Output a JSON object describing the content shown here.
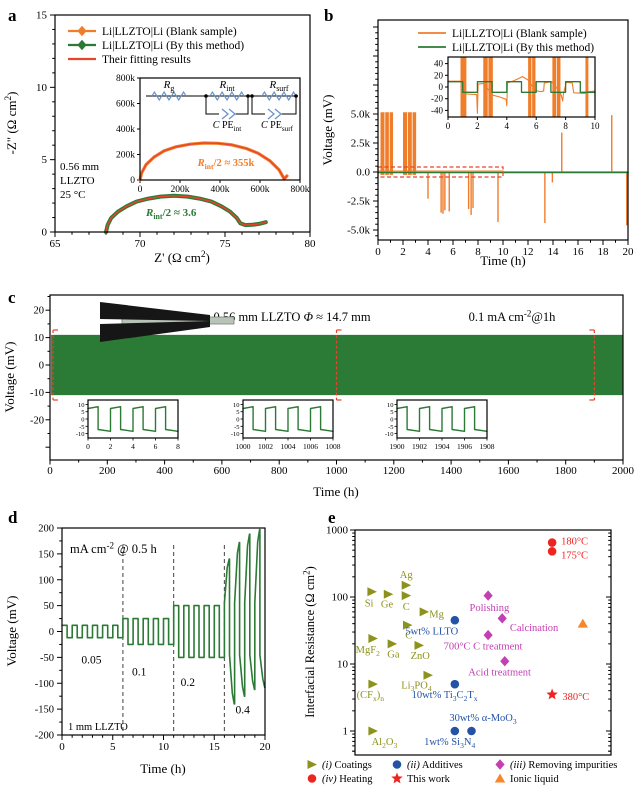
{
  "figure": {
    "panel_labels": [
      "a",
      "b",
      "c",
      "d",
      "e"
    ],
    "background": "#ffffff"
  },
  "colors": {
    "orange": "#f07d2a",
    "green": "#2b7a35",
    "red_fit": "#e8432d",
    "red": "#ee2420",
    "olive": "#8d921c",
    "blue": "#2453a6",
    "magenta": "#c33fb3",
    "ionic_orange": "#f8872b",
    "circuit_blue": "#6b93c9",
    "axis": "#000000"
  },
  "chart_data": [
    {
      "id": "a",
      "type": "line",
      "xlabel": "Z' (Ω cm^2^)",
      "ylabel": "-Z\" (Ω cm^2^)",
      "xlim": [
        65,
        80
      ],
      "ylim": [
        0,
        15
      ],
      "xticks": [
        65,
        70,
        75,
        80
      ],
      "yticks": [
        0,
        5,
        10,
        15
      ],
      "legend": [
        {
          "label": "Li|LLZTO|Li (Blank sample)",
          "color": "orange",
          "marker": true
        },
        {
          "label": "Li|LLZTO|Li (By this method)",
          "color": "green",
          "marker": true
        },
        {
          "label": "Their fitting results",
          "color": "red_fit",
          "marker": false
        }
      ],
      "note_lines": [
        "0.56 mm",
        "LLZTO",
        "25 °C"
      ],
      "arc_label": "*R*~int~/2 ≈ 3.6",
      "green_arc": [
        [
          68,
          0
        ],
        [
          68.1,
          0.5
        ],
        [
          68.3,
          0.96
        ],
        [
          68.7,
          1.4
        ],
        [
          69.2,
          1.77
        ],
        [
          69.8,
          2.1
        ],
        [
          70.5,
          2.31
        ],
        [
          71.2,
          2.45
        ],
        [
          72,
          2.5
        ],
        [
          72.8,
          2.45
        ],
        [
          73.5,
          2.31
        ],
        [
          74.2,
          2.1
        ],
        [
          74.8,
          1.77
        ],
        [
          75.3,
          1.4
        ],
        [
          75.7,
          0.96
        ],
        [
          75.9,
          0.6
        ],
        [
          76.2,
          0.48
        ],
        [
          76.6,
          0.5
        ],
        [
          77,
          0.56
        ],
        [
          77.4,
          0.68
        ]
      ],
      "inset": {
        "xticks": [
          0,
          200,
          400,
          600,
          800
        ],
        "yticks": [
          0,
          200,
          400,
          600,
          800
        ],
        "tick_labels": [
          "0",
          "200k",
          "400k",
          "600k",
          "800k"
        ],
        "arc_label": "*R*~int~/2 ≈ 355k",
        "orange_arc": [
          [
            0,
            0
          ],
          [
            8,
            55
          ],
          [
            30,
            120
          ],
          [
            70,
            180
          ],
          [
            120,
            228
          ],
          [
            180,
            260
          ],
          [
            250,
            281
          ],
          [
            320,
            290
          ],
          [
            390,
            288
          ],
          [
            460,
            275
          ],
          [
            530,
            248
          ],
          [
            590,
            210
          ],
          [
            650,
            150
          ],
          [
            695,
            80
          ],
          [
            715,
            25
          ],
          [
            720,
            8
          ],
          [
            728,
            20
          ],
          [
            735,
            32
          ]
        ],
        "circuit": {
          "resistors": [
            "*R*~g~",
            "*R*~int~",
            "*R*~surf~"
          ],
          "cpes": [
            "*C* PE~int~",
            "*C* PE~surf~"
          ]
        }
      }
    },
    {
      "id": "b",
      "type": "line",
      "xlabel": "Time (h)",
      "ylabel": "Voltage (mV)",
      "xlim": [
        0,
        20
      ],
      "xticks": [
        0,
        2,
        4,
        6,
        8,
        10,
        12,
        14,
        16,
        18,
        20
      ],
      "ytick_vals": [
        5000,
        2500,
        0,
        -2500,
        -5000
      ],
      "ytick_labels": [
        "5.0k",
        "2.5k",
        "0.0",
        "-2.5k",
        "-5.0k"
      ],
      "legend": [
        {
          "label": "Li|LLZTO|Li (Blank sample)",
          "color": "orange"
        },
        {
          "label": "Li|LLZTO|Li (By this method)",
          "color": "green"
        }
      ],
      "orange_bands": [
        [
          0.2,
          1.2
        ],
        [
          2.0,
          3.05
        ]
      ],
      "orange_spikes": [
        [
          4.0,
          -2300
        ],
        [
          5.05,
          -3500
        ],
        [
          5.2,
          -3600
        ],
        [
          5.35,
          -3300
        ],
        [
          5.7,
          -3400
        ],
        [
          7.25,
          -3200
        ],
        [
          7.45,
          -3700
        ],
        [
          7.6,
          -3100
        ],
        [
          9.6,
          -4300
        ],
        [
          13.35,
          -4400
        ],
        [
          13.95,
          -900
        ],
        [
          14.7,
          3400
        ],
        [
          18.7,
          4900
        ],
        [
          19.9,
          -4600
        ]
      ],
      "zoom_box": {
        "t0": 0,
        "t1": 10
      },
      "inset": {
        "xlim": [
          0,
          10
        ],
        "xticks": [
          0,
          2,
          4,
          6,
          8,
          10
        ],
        "yticks": [
          40,
          20,
          0,
          -20,
          -40
        ],
        "green_square": {
          "amp": 9,
          "half_period": 1,
          "t_end": 10
        },
        "orange_line": [
          [
            0,
            10
          ],
          [
            0.85,
            10
          ],
          [
            1.25,
            -12
          ],
          [
            1.95,
            -13
          ],
          [
            2.0,
            -45
          ],
          [
            2.05,
            5
          ],
          [
            2.4,
            6
          ],
          [
            3.05,
            -14
          ],
          [
            3.5,
            -17
          ],
          [
            3.95,
            -21
          ],
          [
            4.0,
            -32
          ],
          [
            4.05,
            7
          ],
          [
            4.5,
            11
          ],
          [
            5.0,
            17
          ],
          [
            5.05,
            18
          ],
          [
            5.45,
            12
          ],
          [
            5.95,
            -6
          ],
          [
            6.3,
            -8
          ],
          [
            6.5,
            -7
          ],
          [
            6.55,
            7
          ],
          [
            7.05,
            9
          ],
          [
            7.65,
            -10
          ],
          [
            7.8,
            -24
          ],
          [
            7.85,
            -12
          ],
          [
            8.05,
            8
          ],
          [
            8.45,
            7
          ],
          [
            8.55,
            -10
          ],
          [
            9.3,
            -11
          ],
          [
            9.55,
            -8
          ],
          [
            10,
            -7
          ]
        ],
        "orange_sat_bands": [
          [
            0.85,
            1.25
          ],
          [
            2.4,
            3.05
          ],
          [
            5.45,
            5.95
          ],
          [
            7.1,
            7.65
          ],
          [
            9.35,
            9.55
          ]
        ]
      }
    },
    {
      "id": "c",
      "type": "line",
      "xlabel": "Time (h)",
      "ylabel": "Voltage (mV)",
      "xlim": [
        0,
        2000
      ],
      "xticks": [
        0,
        200,
        400,
        600,
        800,
        1000,
        1200,
        1400,
        1600,
        1800,
        2000
      ],
      "yticks": [
        20,
        10,
        0,
        -10,
        -20
      ],
      "band": {
        "amp": 11,
        "t0": 4,
        "t1": 1998
      },
      "notes": [
        "0.56 mm LLZTO *Φ* ≈ 14.7 mm",
        "0.1 mA cm^-2^@1h"
      ],
      "zoom_markers": [
        8,
        1000,
        1900
      ],
      "insets": [
        {
          "xticks": [
            0,
            2,
            4,
            6,
            8
          ]
        },
        {
          "xticks": [
            1000,
            1002,
            1004,
            1006,
            1008
          ]
        },
        {
          "xticks": [
            1900,
            1902,
            1904,
            1906,
            1908
          ]
        }
      ],
      "inset_yticks": [
        10,
        5,
        0,
        -5,
        -10
      ],
      "inset_wave": {
        "amp_start": 7.2,
        "amp_end": 8.4,
        "high_time": 0.9,
        "period": 2,
        "cycles": 4
      }
    },
    {
      "id": "d",
      "type": "line",
      "xlabel": "Time (h)",
      "ylabel": "Voltage (mV)",
      "xlim": [
        0,
        20
      ],
      "xticks": [
        0,
        5,
        10,
        15,
        20
      ],
      "ylim": [
        -200,
        200
      ],
      "yticks": [
        -200,
        -150,
        -100,
        -50,
        0,
        50,
        100,
        150,
        200
      ],
      "top_note": "mA cm^-2^ @ 0.5 h",
      "bottom_note": "1 mm LLZTO",
      "dash_lines": [
        6,
        11,
        16
      ],
      "segments": [
        {
          "t0": 0,
          "t1": 6,
          "amp": 12,
          "label": "0.05",
          "label_at": [
            2.9,
            -62
          ]
        },
        {
          "t0": 6,
          "t1": 11,
          "amp": 25,
          "label": "0.1",
          "label_at": [
            7.6,
            -85
          ]
        },
        {
          "t0": 11,
          "t1": 16,
          "amp": 50,
          "label": "0.2",
          "label_at": [
            12.4,
            -105
          ]
        }
      ],
      "final_cycles": {
        "label": "0.4",
        "label_at": [
          17.8,
          -158
        ],
        "cycles": [
          [
            16,
            140,
            -140
          ],
          [
            17,
            172,
            -125
          ],
          [
            18,
            188,
            -112
          ],
          [
            19,
            197,
            -108
          ]
        ]
      }
    },
    {
      "id": "e",
      "type": "scatter",
      "ylabel": "Interfacial Resistance (Ω cm^2^)",
      "yscale": "log",
      "ylim": [
        0.45,
        1500
      ],
      "yticks": [
        1,
        10,
        100,
        1000
      ],
      "groups": [
        {
          "name": "coatings",
          "marker": "tri-right",
          "color": "olive",
          "points": [
            [
              0.066,
              120
            ],
            [
              0.13,
              110
            ],
            [
              0.2,
              150
            ],
            [
              0.2,
              105
            ],
            [
              0.27,
              60
            ],
            [
              0.205,
              38
            ],
            [
              0.07,
              24
            ],
            [
              0.145,
              20
            ],
            [
              0.25,
              19
            ],
            [
              0.285,
              6.8
            ],
            [
              0.07,
              5
            ],
            [
              0.07,
              1.0
            ]
          ]
        },
        {
          "name": "additives",
          "marker": "circle",
          "color": "blue",
          "points": [
            [
              0.39,
              45
            ],
            [
              0.39,
              5
            ],
            [
              0.39,
              1.0
            ],
            [
              0.455,
              1.0
            ]
          ]
        },
        {
          "name": "removing-impurities",
          "marker": "diamond",
          "color": "magenta",
          "points": [
            [
              0.52,
              105
            ],
            [
              0.575,
              48
            ],
            [
              0.52,
              27
            ],
            [
              0.585,
              11
            ]
          ]
        },
        {
          "name": "heating",
          "marker": "circle",
          "color": "red",
          "points": [
            [
              0.77,
              650
            ],
            [
              0.77,
              480
            ]
          ]
        },
        {
          "name": "this-work",
          "marker": "star",
          "color": "red",
          "points": [
            [
              0.77,
              3.5
            ]
          ]
        },
        {
          "name": "ionic-liquid",
          "marker": "tri-up",
          "color": "ionic_orange",
          "points": [
            [
              0.89,
              40
            ]
          ]
        }
      ],
      "point_labels": [
        {
          "x": 0.055,
          "v": 82,
          "text": "Si",
          "color": "olive",
          "anchor": "middle"
        },
        {
          "x": 0.125,
          "v": 78,
          "text": "Ge",
          "color": "olive",
          "anchor": "middle"
        },
        {
          "x": 0.2,
          "v": 215,
          "text": "Ag",
          "color": "olive",
          "anchor": "middle"
        },
        {
          "x": 0.2,
          "v": 72,
          "text": "C",
          "color": "olive",
          "anchor": "middle"
        },
        {
          "x": 0.29,
          "v": 56,
          "text": "Mg",
          "color": "olive",
          "anchor": "start"
        },
        {
          "x": 0.21,
          "v": 27,
          "text": "C",
          "color": "olive",
          "anchor": "middle"
        },
        {
          "x": 0.05,
          "v": 16.5,
          "text": "MgF~2~",
          "color": "olive",
          "anchor": "middle"
        },
        {
          "x": 0.15,
          "v": 14,
          "text": "Ga",
          "color": "olive",
          "anchor": "middle"
        },
        {
          "x": 0.255,
          "v": 13.5,
          "text": "ZnO",
          "color": "olive",
          "anchor": "middle"
        },
        {
          "x": 0.24,
          "v": 4.9,
          "text": "Li~3~PO~4~",
          "color": "olive",
          "anchor": "middle"
        },
        {
          "x": 0.06,
          "v": 3.5,
          "text": "(CF~x~)~n~",
          "color": "olive",
          "anchor": "middle"
        },
        {
          "x": 0.115,
          "v": 0.7,
          "text": "Al~2~O~3~",
          "color": "olive",
          "anchor": "middle"
        },
        {
          "x": 0.3,
          "v": 31,
          "text": "5wt% LLTO",
          "color": "blue",
          "anchor": "middle"
        },
        {
          "x": 0.35,
          "v": 3.5,
          "text": "10wt% Ti~3~C~2~T~x~",
          "color": "blue",
          "anchor": "middle"
        },
        {
          "x": 0.5,
          "v": 1.6,
          "text": "30wt% α-MoO~3~",
          "color": "blue",
          "anchor": "middle"
        },
        {
          "x": 0.37,
          "v": 0.7,
          "text": "1wt% Si~3~N~4~",
          "color": "blue",
          "anchor": "middle"
        },
        {
          "x": 0.525,
          "v": 70,
          "text": "Polishing",
          "color": "magenta",
          "anchor": "middle"
        },
        {
          "x": 0.605,
          "v": 35,
          "text": "Calcination",
          "color": "magenta",
          "anchor": "start"
        },
        {
          "x": 0.5,
          "v": 18.5,
          "text": "700°C C treatment",
          "color": "magenta",
          "anchor": "middle"
        },
        {
          "x": 0.565,
          "v": 7.6,
          "text": "Acid treatment",
          "color": "magenta",
          "anchor": "middle"
        },
        {
          "x": 0.805,
          "v": 690,
          "text": "180°C",
          "color": "red",
          "anchor": "start"
        },
        {
          "x": 0.805,
          "v": 420,
          "text": "175°C",
          "color": "red",
          "anchor": "start"
        },
        {
          "x": 0.81,
          "v": 3.3,
          "text": "380°C",
          "color": "red",
          "anchor": "start"
        }
      ],
      "legend_rows": [
        [
          {
            "marker": "tri-right",
            "color": "olive",
            "label": "*(i)* Coatings"
          },
          {
            "marker": "circle",
            "color": "blue",
            "label": "*(ii)* Additives"
          },
          {
            "marker": "diamond",
            "color": "magenta",
            "label": "*(iii)* Removing impurities"
          }
        ],
        [
          {
            "marker": "circle",
            "color": "red",
            "label": "*(iv)* Heating"
          },
          {
            "marker": "star",
            "color": "red",
            "label": "This work"
          },
          {
            "marker": "tri-up",
            "color": "ionic_orange",
            "label": "Ionic liquid"
          }
        ]
      ]
    }
  ]
}
